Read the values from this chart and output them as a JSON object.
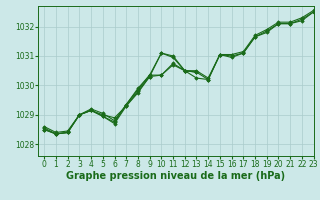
{
  "background_color": "#cce8e8",
  "grid_color": "#aacccc",
  "line_color": "#1a6b1a",
  "marker_color": "#1a6b1a",
  "xlabel": "Graphe pression niveau de la mer (hPa)",
  "xlabel_fontsize": 7,
  "tick_fontsize": 5.5,
  "xlim": [
    -0.5,
    23
  ],
  "ylim": [
    1027.6,
    1032.7
  ],
  "yticks": [
    1028,
    1029,
    1030,
    1031,
    1032
  ],
  "xticks": [
    0,
    1,
    2,
    3,
    4,
    5,
    6,
    7,
    8,
    9,
    10,
    11,
    12,
    13,
    14,
    15,
    16,
    17,
    18,
    19,
    20,
    21,
    22,
    23
  ],
  "line1_x": [
    0,
    1,
    2,
    3,
    4,
    5,
    6,
    7,
    8,
    9,
    10,
    11,
    12,
    13,
    14,
    15,
    16,
    17,
    18,
    19,
    20,
    21,
    22,
    23
  ],
  "line1_y": [
    1028.5,
    1028.35,
    1028.4,
    1029.0,
    1029.15,
    1028.95,
    1028.75,
    1029.35,
    1029.85,
    1030.35,
    1031.1,
    1031.0,
    1030.5,
    1030.45,
    1030.2,
    1031.05,
    1030.95,
    1031.1,
    1031.65,
    1031.8,
    1032.1,
    1032.1,
    1032.2,
    1032.5
  ],
  "line2_x": [
    0,
    1,
    2,
    3,
    4,
    5,
    6,
    7,
    8,
    9,
    10,
    11,
    12,
    13,
    14,
    15,
    16,
    17,
    18,
    19,
    20,
    21,
    22,
    23
  ],
  "line2_y": [
    1028.55,
    1028.35,
    1028.4,
    1029.0,
    1029.15,
    1029.0,
    1028.9,
    1029.3,
    1029.8,
    1030.3,
    1030.35,
    1030.75,
    1030.5,
    1030.5,
    1030.25,
    1031.05,
    1031.0,
    1031.1,
    1031.65,
    1031.85,
    1032.1,
    1032.1,
    1032.25,
    1032.5
  ],
  "line3_x": [
    0,
    1,
    2,
    3,
    4,
    5,
    6,
    7,
    8,
    9,
    10,
    11,
    12,
    13,
    14,
    15,
    16,
    17,
    18,
    19,
    20,
    21,
    22,
    23
  ],
  "line3_y": [
    1028.6,
    1028.4,
    1028.45,
    1029.0,
    1029.2,
    1029.05,
    1028.8,
    1029.35,
    1029.9,
    1030.35,
    1030.35,
    1030.7,
    1030.5,
    1030.25,
    1030.2,
    1031.05,
    1031.05,
    1031.15,
    1031.7,
    1031.9,
    1032.15,
    1032.15,
    1032.3,
    1032.55
  ],
  "line4_x": [
    0,
    1,
    2,
    3,
    4,
    5,
    6,
    7,
    8,
    9,
    10,
    11,
    12,
    13
  ],
  "line4_y": [
    1028.5,
    1028.35,
    1028.4,
    1029.0,
    1029.15,
    1028.95,
    1028.7,
    1029.3,
    1029.75,
    1030.3,
    1031.1,
    1030.95,
    1030.5,
    1030.45
  ]
}
